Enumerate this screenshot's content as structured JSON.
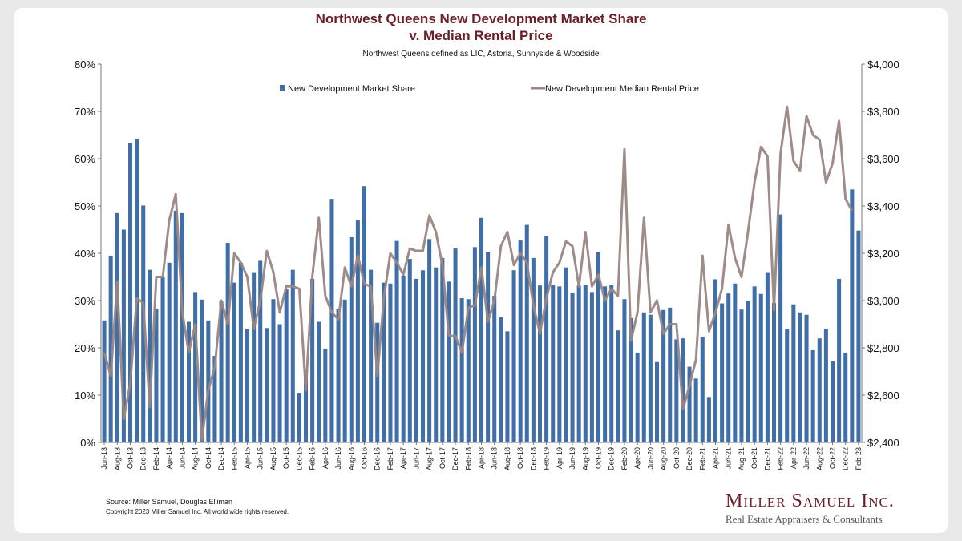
{
  "header": {
    "title_line1": "Northwest Queens New Development Market Share",
    "title_line2": "v. Median Rental Price",
    "subtitle": "Northwest Queens defined as LIC, Astoria, Sunnyside & Woodside"
  },
  "footer": {
    "source": "Source: Miller Samuel, Douglas Elliman",
    "copyright": "Copyright 2023 Miller Samuel Inc.  All world wide rights reserved.",
    "brand": "Miller Samuel Inc.",
    "tagline": "Real Estate Appraisers & Consultants"
  },
  "chart_data": {
    "type": "bar",
    "grid": false,
    "legend_position": "top",
    "y_left": {
      "min": 0,
      "max": 80,
      "step": 10,
      "unit": "%"
    },
    "y_right": {
      "min": 2400,
      "max": 4000,
      "step": 200,
      "prefix": "$"
    },
    "start_month": "Jun-13",
    "x_tick_labels": [
      "Jun-13",
      "Aug-13",
      "Oct-13",
      "Dec-13",
      "Feb-14",
      "Apr-14",
      "Jun-14",
      "Aug-14",
      "Oct-14",
      "Dec-14",
      "Feb-15",
      "Apr-15",
      "Jun-15",
      "Aug-15",
      "Oct-15",
      "Dec-15",
      "Feb-16",
      "Apr-16",
      "Jun-16",
      "Aug-16",
      "Oct-16",
      "Dec-16",
      "Feb-17",
      "Apr-17",
      "Jun-17",
      "Aug-17",
      "Oct-17",
      "Dec-17",
      "Feb-18",
      "Apr-18",
      "Jun-18",
      "Aug-18",
      "Oct-18",
      "Dec-18",
      "Feb-19",
      "Apr-19",
      "Jun-19",
      "Aug-19",
      "Oct-19",
      "Dec-19",
      "Feb-20",
      "Apr-20",
      "Jun-20",
      "Aug-20",
      "Oct-20",
      "Dec-20",
      "Feb-21",
      "Apr-21",
      "Jun-21",
      "Aug-21",
      "Oct-21",
      "Dec-21",
      "Feb-22",
      "Apr-22",
      "Jun-22",
      "Aug-22",
      "Oct-22",
      "Dec-22",
      "Feb-23"
    ],
    "series": [
      {
        "name": "New Development Market Share",
        "axis": "left",
        "color": "#3f6ea8",
        "values": [
          25.8,
          39.5,
          48.5,
          45.0,
          63.3,
          64.2,
          50.1,
          36.5,
          28.3,
          35.0,
          38.0,
          49.0,
          48.5,
          25.5,
          31.8,
          30.2,
          25.8,
          18.3,
          30.0,
          42.2,
          33.8,
          38.0,
          24.0,
          36.0,
          38.4,
          24.2,
          30.3,
          25.0,
          32.4,
          36.5,
          10.5,
          14.8,
          34.6,
          25.5,
          19.8,
          51.5,
          28.3,
          30.2,
          43.4,
          47.0,
          54.2,
          36.5,
          25.3,
          33.8,
          33.6,
          42.6,
          35.3,
          38.8,
          34.6,
          36.4,
          43.0,
          37.0,
          39.0,
          34.0,
          41.0,
          30.5,
          30.3,
          41.3,
          47.5,
          40.3,
          31.0,
          26.5,
          23.5,
          36.4,
          42.7,
          46.0,
          39.0,
          33.2,
          43.6,
          33.3,
          33.0,
          37.0,
          31.7,
          33.2,
          33.4,
          31.8,
          40.2,
          33.0,
          33.3,
          23.7,
          30.3,
          26.3,
          19.0,
          27.5,
          27.0,
          17.0,
          28.0,
          28.5,
          21.8,
          22.0,
          16.0,
          13.5,
          22.3,
          9.6,
          34.5,
          29.4,
          31.5,
          33.6,
          28.1,
          30.0,
          33.0,
          31.4,
          36.0,
          29.5,
          48.2,
          24.0,
          29.2,
          27.5,
          27.0,
          19.5,
          22.0,
          24.0,
          17.2,
          34.6,
          19.0,
          53.5,
          44.8
        ]
      },
      {
        "name": "New Development Median Rental Price",
        "axis": "right",
        "color": "#9a8682",
        "values": [
          2780,
          2680,
          3080,
          2500,
          2650,
          3010,
          2990,
          2550,
          3100,
          3100,
          3340,
          3450,
          2950,
          2780,
          2900,
          2410,
          2620,
          2720,
          3000,
          2900,
          3200,
          3160,
          3100,
          2880,
          3000,
          3210,
          3120,
          2950,
          3060,
          3060,
          3050,
          2620,
          3100,
          3350,
          3020,
          2950,
          2920,
          3140,
          3060,
          3190,
          3070,
          3060,
          2680,
          3010,
          3200,
          3160,
          3110,
          3220,
          3210,
          3210,
          3360,
          3290,
          3150,
          2850,
          2850,
          2780,
          2970,
          2980,
          3140,
          2910,
          3000,
          3230,
          3290,
          3150,
          3200,
          3160,
          2980,
          2860,
          3010,
          3120,
          3160,
          3250,
          3230,
          3060,
          3290,
          3060,
          3110,
          3000,
          3050,
          3020,
          3640,
          2830,
          2950,
          3350,
          2950,
          3000,
          2860,
          2900,
          2900,
          2540,
          2640,
          2750,
          3190,
          2870,
          2950,
          3050,
          3320,
          3180,
          3100,
          3290,
          3500,
          3650,
          3610,
          2960,
          3620,
          3820,
          3590,
          3550,
          3780,
          3700,
          3680,
          3500,
          3580,
          3760,
          3430,
          3380
        ]
      }
    ]
  }
}
